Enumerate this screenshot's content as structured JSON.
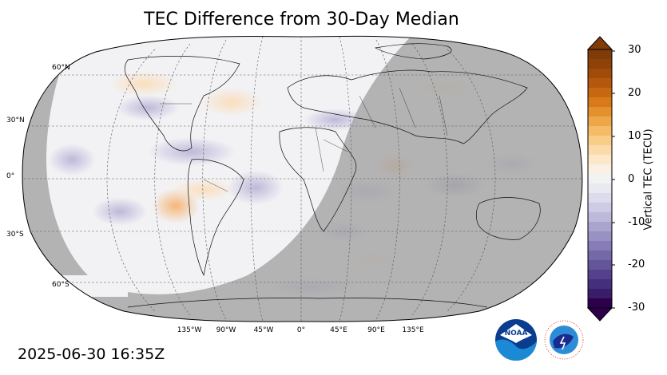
{
  "title": "TEC Difference from 30-Day Median",
  "timestamp": "2025-06-30 16:35Z",
  "map": {
    "projection": "Robinson",
    "lat_labels": [
      "60°N",
      "30°N",
      "0°",
      "30°S",
      "60°S"
    ],
    "lon_labels": [
      "135°W",
      "90°W",
      "45°W",
      "0°",
      "45°E",
      "90°E",
      "135°E"
    ],
    "night_shading": "gray overlay on night side",
    "day_side_background": "#f2f2f5",
    "night_color": "#a8a8a8"
  },
  "colorbar": {
    "label": "Vertical TEC (TECU)",
    "ticks": [
      "30",
      "20",
      "10",
      "0",
      "-10",
      "-20",
      "-30"
    ],
    "min": -30,
    "max": 30,
    "colormap": "PuOr_r",
    "extend": "both"
  },
  "logos": {
    "noaa_text": "NOAA",
    "nws_text": "NATIONAL WEATHER SERVICE"
  }
}
